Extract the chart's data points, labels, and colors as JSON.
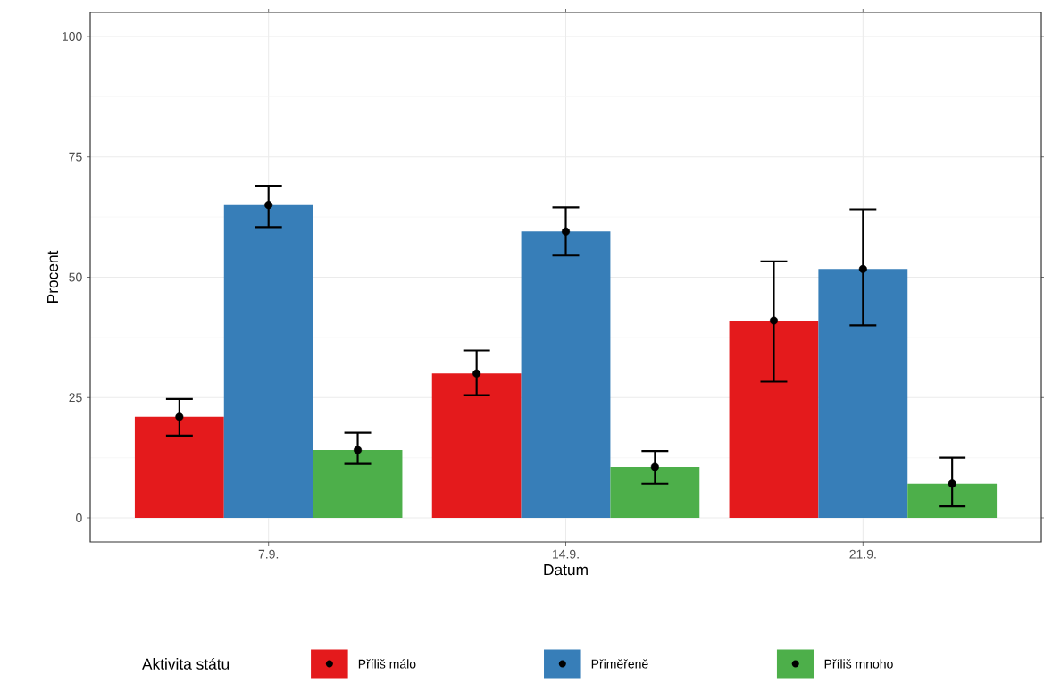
{
  "chart_data": {
    "type": "bar",
    "xlabel": "Datum",
    "ylabel": "Procent",
    "legend_title": "Aktivita státu",
    "categories": [
      "7.9.",
      "14.9.",
      "21.9."
    ],
    "ylim": [
      -5,
      105
    ],
    "yticks": [
      0,
      25,
      50,
      75,
      100
    ],
    "grid": true,
    "legend": "bottom",
    "marker": "circle",
    "series": [
      {
        "name": "Příliš málo",
        "color": "#e41a1c",
        "values": [
          21,
          30,
          41
        ]
      },
      {
        "name": "Přiměřeně",
        "color": "#377eb8",
        "values": [
          65,
          59.5,
          51.7
        ]
      },
      {
        "name": "Příliš mnoho",
        "color": "#4daf4a",
        "values": [
          14.1,
          10.6,
          7.1
        ]
      },
      {
        "type": "scatter",
        "color": "#000000",
        "x": [
          "7.9.",
          "14.9.",
          "21.9."
        ],
        "values": [
          21,
          30,
          41
        ],
        "errors": [
          [
            17.1,
            24.7
          ],
          [
            25.5,
            34.8
          ],
          [
            28.3,
            53.3
          ]
        ]
      },
      {
        "type": "scatter",
        "color": "#000000",
        "x": [
          "7.9.",
          "14.9.",
          "21.9."
        ],
        "values": [
          65,
          59.5,
          51.7
        ],
        "errors": [
          [
            60.4,
            69
          ],
          [
            54.5,
            64.5
          ],
          [
            40,
            64.1
          ]
        ]
      },
      {
        "type": "scatter",
        "color": "#000000",
        "x": [
          "7.9.",
          "14.9.",
          "21.9."
        ],
        "values": [
          14.1,
          10.6,
          7.1
        ],
        "errors": [
          [
            11.2,
            17.7
          ],
          [
            7.1,
            13.9
          ],
          [
            2.4,
            12.5
          ]
        ]
      }
    ]
  }
}
